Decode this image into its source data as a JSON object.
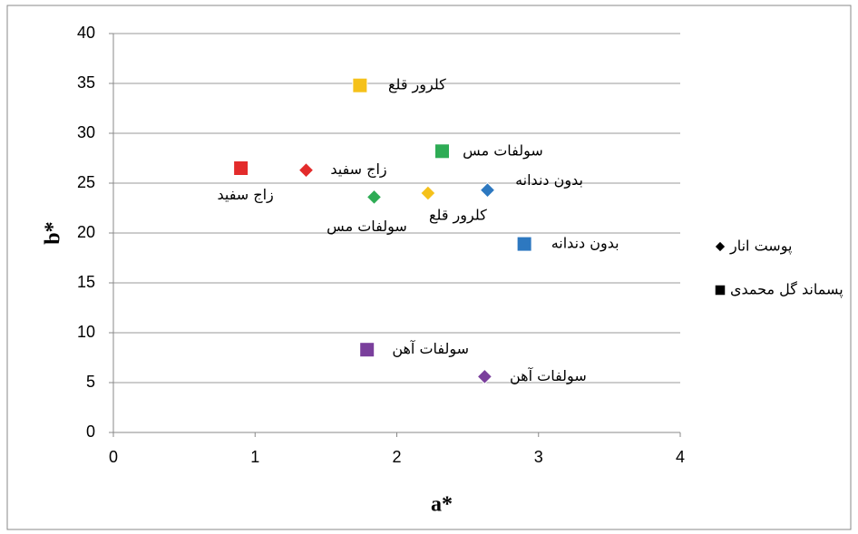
{
  "chart_data": {
    "type": "scatter",
    "xlabel": "a*",
    "ylabel": "b*",
    "xlim": [
      0,
      4
    ],
    "xticks": [
      0,
      1,
      2,
      3,
      4
    ],
    "ylim": [
      0,
      40
    ],
    "yticks": [
      0,
      5,
      10,
      15,
      20,
      25,
      30,
      35,
      40
    ],
    "grid": true,
    "legend": "right",
    "series": [
      {
        "name": "پوست انار",
        "marker": "diamond",
        "x": [
          1.36,
          1.84,
          2.22,
          2.64,
          2.62
        ],
        "values": [
          26.3,
          23.6,
          24.0,
          24.3,
          5.6
        ],
        "labels": [
          "زاج سفید",
          "سولفات مس",
          "کلرور قلع",
          "بدون دندانه",
          "سولفات آهن"
        ],
        "colors": [
          "#e32b2b",
          "#2eac55",
          "#f5c11a",
          "#2d78c0",
          "#7a3f9c"
        ]
      },
      {
        "name": "پسماند گل محمدی",
        "marker": "square",
        "x": [
          0.9,
          1.74,
          2.32,
          2.9,
          1.79
        ],
        "values": [
          26.5,
          34.8,
          28.2,
          18.9,
          8.3
        ],
        "labels": [
          "زاج سفید",
          "کلرور قلع",
          "سولفات مس",
          "بدون دندانه",
          "سولفات آهن"
        ],
        "colors": [
          "#e32b2b",
          "#f5c11a",
          "#2eac55",
          "#2d78c0",
          "#7a3f9c"
        ]
      }
    ]
  }
}
